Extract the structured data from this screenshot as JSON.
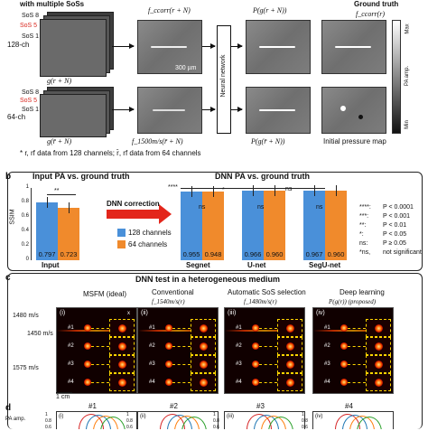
{
  "panel_a": {
    "header_left": "with multiple SoSs",
    "header_ground_truth": "Ground truth",
    "sos_labels": [
      "SoS 8",
      "SoS 5",
      "SoS 1"
    ],
    "sos_labels_64": [
      "SoS 8",
      "SoS 5",
      "SoS 1"
    ],
    "ch128": "128-ch",
    "ch64": "64-ch",
    "formula_g": "g(r + N)",
    "formula_g64": "g(r̄ + N)",
    "formula_fcorr": "f_ccorr(r + N)",
    "formula_P": "P(g(r + N))",
    "formula_fcorr_gt": "f_ccorr(r)",
    "formula_f1500": "f_1500m/s(r̄ + N)",
    "formula_P64": "P(g(r̄ + N))",
    "scale_bar": "300 µm",
    "neural_network": "Neural network",
    "initial_pressure": "Initial pressure map",
    "colorbar_max": "Max",
    "colorbar_min": "Min",
    "colorbar_label": "PA amp.",
    "footnote": "* r, rf data from 128 channels; r̄, rf data from 64 channels"
  },
  "panel_b": {
    "letter": "b",
    "title_left": "Input PA vs. ground truth",
    "title_right": "DNN PA vs. ground truth",
    "arrow_label": "DNN correction",
    "ylabel": "SSIM",
    "yticks": [
      "1",
      "0.8",
      "0.6",
      "0.4",
      "0.2",
      "0"
    ],
    "legend": [
      "128 channels",
      "64 channels"
    ],
    "colors": {
      "ch128": "#4a90d9",
      "ch64": "#f08a2c"
    },
    "significance": [
      {
        "sym": "****:",
        "text": "P < 0.0001"
      },
      {
        "sym": "***:",
        "text": "P < 0.001"
      },
      {
        "sym": "**:",
        "text": "P < 0.01"
      },
      {
        "sym": "*:",
        "text": "P < 0.05"
      },
      {
        "sym": "ns:",
        "text": "P ≥ 0.05"
      },
      {
        "sym": "*ns,",
        "text": "not significant"
      }
    ],
    "marks": {
      "input_pair": "**",
      "main": "****",
      "ns": "ns",
      "star": "*"
    }
  },
  "chart_data": {
    "type": "bar",
    "categories": [
      "Input",
      "Segnet",
      "U-net",
      "SegU-net"
    ],
    "series": [
      {
        "name": "128 channels",
        "values": [
          0.797,
          0.955,
          0.966,
          0.967
        ]
      },
      {
        "name": "64 channels",
        "values": [
          0.723,
          0.948,
          0.96,
          0.96
        ]
      }
    ],
    "value_labels": [
      [
        "0.797",
        "0.723"
      ],
      [
        "0.955",
        "0.948"
      ],
      [
        "0.966",
        "0.960"
      ],
      [
        "0.967",
        "0.960"
      ]
    ],
    "ylabel": "SSIM",
    "ylim": [
      0,
      1
    ]
  },
  "panel_c": {
    "letter": "c",
    "title": "DNN test in a heterogeneous medium",
    "columns": [
      {
        "num": "(i)",
        "title": "MSFM (ideal)"
      },
      {
        "num": "(ii)",
        "title": "Conventional"
      },
      {
        "num": "(iii)",
        "title": "Automatic SoS selection"
      },
      {
        "num": "(iv)",
        "title": "Deep learning"
      }
    ],
    "col_formulas": [
      "",
      "f_1540m/s(r)",
      "f_1480m/s(r)",
      "P(g(r)) (proposed)"
    ],
    "speeds": [
      "1480 m/s",
      "1450 m/s",
      "1575 m/s"
    ],
    "targets": [
      "#1",
      "#2",
      "#3",
      "#4"
    ],
    "axes": [
      "x",
      "z"
    ],
    "scale": "1 cm"
  },
  "panel_d": {
    "letter": "d",
    "ylabel": "PA amp.",
    "yticks": [
      "1",
      "0.8",
      "0.6"
    ],
    "subplots": [
      {
        "id": "#1",
        "num": "(i)"
      },
      {
        "id": "#2",
        "num": "(ii)"
      },
      {
        "id": "#3",
        "num": "(iii)"
      },
      {
        "id": "#4",
        "num": "(iv)"
      }
    ]
  }
}
